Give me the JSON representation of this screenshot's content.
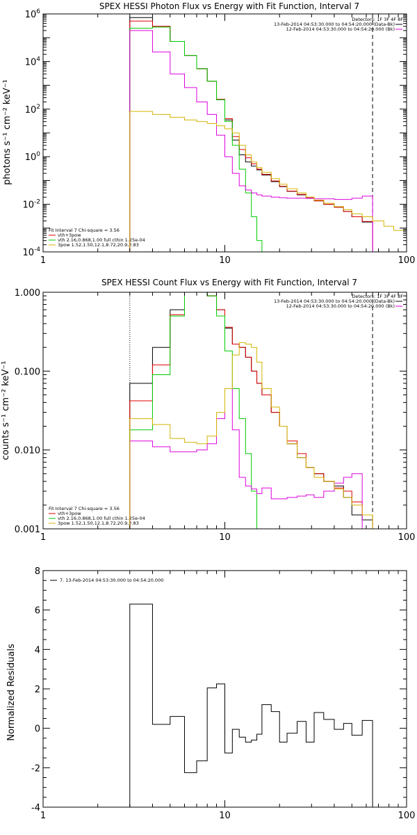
{
  "colors": {
    "black": "#000000",
    "red": "#e00000",
    "green": "#00cc00",
    "magenta": "#dd00dd",
    "yellow": "#d4b400"
  },
  "chart_data": [
    {
      "type": "line",
      "title": "SPEX HESSI Photon Flux vs Energy with Fit Function, Interval 7",
      "ylabel": "photons s⁻¹ cm⁻² keV⁻¹",
      "xlabel": "",
      "xscale": "log",
      "yscale": "log",
      "xlim": [
        1,
        100
      ],
      "ylim": [
        0.0001,
        1000000
      ],
      "x_ticks": [
        {
          "v": 1,
          "label": "1"
        },
        {
          "v": 10,
          "label": "10"
        },
        {
          "v": 100,
          "label": "100"
        }
      ],
      "y_ticks": [
        {
          "v": 0.0001,
          "base": "10",
          "exp": "-4"
        },
        {
          "v": 0.01,
          "base": "10",
          "exp": "-2"
        },
        {
          "v": 1,
          "base": "10",
          "exp": "0"
        },
        {
          "v": 100,
          "base": "10",
          "exp": "2"
        },
        {
          "v": 10000,
          "base": "10",
          "exp": "4"
        },
        {
          "v": 1000000,
          "base": "10",
          "exp": "6"
        }
      ],
      "legend_top": {
        "header": "Detectors: 1F 3F 4F 8F",
        "entries": [
          {
            "text": "13-Feb-2014 04:53:30.000 to 04:54:20.000 (Data-Bk)",
            "color": "#000000"
          },
          {
            "text": "12-Feb-2014 04:53:30.000 to 04:54:20.000 (Bk)",
            "color": "#dd00dd"
          }
        ]
      },
      "legend_bottom": {
        "header": "Fit Interval  7    Chi-square = 3.56",
        "entries": [
          {
            "text": "vth+3pow",
            "color": "#e00000"
          },
          {
            "text": "vth 2.16,0.868,1.00   full cthin 1.25e-04",
            "color": "#00cc00"
          },
          {
            "text": "3pow 1.52,1.50,12.1,8.72,20.9,2.83",
            "color": "#d4b400"
          }
        ]
      },
      "vlines": [
        {
          "x": 3,
          "style": "dotted"
        },
        {
          "x": 65,
          "style": "dashed"
        }
      ],
      "bin_edges": [
        3,
        4,
        5,
        6,
        7,
        8,
        9,
        10,
        11,
        12,
        13,
        14,
        15,
        16,
        18,
        20,
        22,
        25,
        28,
        31,
        35,
        40,
        45,
        50,
        57,
        65,
        75,
        85,
        100
      ],
      "series": [
        {
          "name": "Data-Bk",
          "color": "#000000",
          "start": 0,
          "values": [
            700000,
            300000,
            70000,
            18000,
            5000,
            1500,
            250,
            35,
            5,
            1.2,
            0.6,
            0.4,
            0.28,
            0.17,
            0.09,
            0.055,
            0.035,
            0.025,
            0.018,
            0.014,
            0.01,
            0.0075,
            0.005,
            0.003,
            0.0018
          ]
        },
        {
          "name": "vth+3pow",
          "color": "#e00000",
          "start": 0,
          "values": [
            500000,
            300000,
            70000,
            18000,
            5000,
            1500,
            260,
            40,
            7,
            2,
            0.9,
            0.5,
            0.3,
            0.18,
            0.095,
            0.057,
            0.036,
            0.026,
            0.019,
            0.014,
            0.01,
            0.0075,
            0.005,
            0.003,
            0.0019
          ]
        },
        {
          "name": "vth",
          "color": "#00cc00",
          "start": 0,
          "values": [
            250000,
            280000,
            70000,
            18000,
            5000,
            1500,
            250,
            30,
            3,
            0.3,
            0.03,
            0.003,
            0.0003,
            4e-05
          ]
        },
        {
          "name": "Bk",
          "color": "#dd00dd",
          "start": 0,
          "values": [
            200000,
            25000,
            3000,
            800,
            200,
            60,
            8,
            1,
            0.2,
            0.06,
            0.04,
            0.03,
            0.025,
            0.022,
            0.02,
            0.019,
            0.018,
            0.018,
            0.018,
            0.017,
            0.017,
            0.016,
            0.016,
            0.018,
            0.022
          ]
        },
        {
          "name": "3pow",
          "color": "#d4b400",
          "start": 0,
          "values": [
            80,
            60,
            45,
            35,
            30,
            25,
            20,
            15,
            10,
            3,
            1.2,
            0.6,
            0.35,
            0.22,
            0.12,
            0.07,
            0.045,
            0.03,
            0.02,
            0.015,
            0.011,
            0.008,
            0.006,
            0.004,
            0.003,
            0.002,
            0.0012,
            0.0008
          ]
        }
      ]
    },
    {
      "type": "line",
      "title": "SPEX HESSI Count Flux vs Energy with Fit Function, Interval 7",
      "ylabel": "counts s⁻¹ cm⁻² keV⁻¹",
      "xlabel": "",
      "xscale": "log",
      "yscale": "log",
      "xlim": [
        1,
        100
      ],
      "ylim": [
        0.001,
        1
      ],
      "x_ticks": [
        {
          "v": 1,
          "label": "1"
        },
        {
          "v": 10,
          "label": "10"
        },
        {
          "v": 100,
          "label": "100"
        }
      ],
      "y_ticks": [
        {
          "v": 0.001,
          "label": "0.001"
        },
        {
          "v": 0.01,
          "label": "0.010"
        },
        {
          "v": 0.1,
          "label": "0.100"
        },
        {
          "v": 1,
          "label": "1.000"
        }
      ],
      "legend_top": {
        "header": "Detectors: 1F 3F 4F 8F",
        "entries": [
          {
            "text": "13-Feb-2014 04:53:30.000 to 04:54:20.000 (Data-Bk)",
            "color": "#000000"
          },
          {
            "text": "12-Feb-2014 04:53:30.000 to 04:54:20.000 (Bk)",
            "color": "#dd00dd"
          }
        ]
      },
      "legend_bottom": {
        "header": "Fit Interval  7    Chi-square = 3.56",
        "entries": [
          {
            "text": "vth+3pow",
            "color": "#e00000"
          },
          {
            "text": "vth 2.16,0.868,1.00   full cthin 1.25e-04",
            "color": "#00cc00"
          },
          {
            "text": "3pow 1.52,1.50,12.1,8.72,20.9,2.83",
            "color": "#d4b400"
          }
        ]
      },
      "vlines": [
        {
          "x": 3,
          "style": "dotted"
        },
        {
          "x": 65,
          "style": "dashed"
        }
      ],
      "bin_edges": [
        3,
        4,
        5,
        6,
        7,
        8,
        9,
        10,
        11,
        12,
        13,
        14,
        15,
        16,
        18,
        20,
        22,
        25,
        28,
        31,
        35,
        40,
        45,
        50,
        57,
        65,
        75,
        85,
        100
      ],
      "series": [
        {
          "name": "Data-Bk",
          "color": "#000000",
          "start": 0,
          "values": [
            0.07,
            0.2,
            0.6,
            1.5,
            1.3,
            0.9,
            0.6,
            0.35,
            0.22,
            0.2,
            0.15,
            0.1,
            0.07,
            0.05,
            0.03,
            0.02,
            0.012,
            0.008,
            0.006,
            0.005,
            0.004,
            0.0035,
            0.0025,
            0.0015,
            0.0013
          ]
        },
        {
          "name": "vth+3pow",
          "color": "#e00000",
          "start": 0,
          "values": [
            0.042,
            0.12,
            0.52,
            1.5,
            1.3,
            0.9,
            0.6,
            0.36,
            0.22,
            0.2,
            0.15,
            0.1,
            0.07,
            0.05,
            0.03,
            0.02,
            0.013,
            0.009,
            0.006,
            0.005,
            0.004,
            0.0033,
            0.003,
            0.0022,
            0.0015
          ]
        },
        {
          "name": "vth",
          "color": "#00cc00",
          "start": 0,
          "values": [
            0.018,
            0.09,
            0.5,
            1.5,
            1.3,
            0.9,
            0.5,
            0.18,
            0.06,
            0.025,
            0.009,
            0.003,
            0.0009,
            0.0003
          ]
        },
        {
          "name": "Bk",
          "color": "#dd00dd",
          "start": 0,
          "values": [
            0.013,
            0.011,
            0.0095,
            0.0095,
            0.01,
            0.012,
            0.025,
            0.06,
            0.018,
            0.0045,
            0.0035,
            0.0032,
            0.0028,
            0.0033,
            0.0024,
            0.0024,
            0.0025,
            0.0026,
            0.0027,
            0.0025,
            0.003,
            0.0038,
            0.0045,
            0.005
          ]
        },
        {
          "name": "3pow",
          "color": "#d4b400",
          "start": 0,
          "values": [
            0.025,
            0.021,
            0.014,
            0.0125,
            0.012,
            0.015,
            0.03,
            0.06,
            0.16,
            0.23,
            0.22,
            0.2,
            0.13,
            0.06,
            0.035,
            0.02,
            0.012,
            0.008,
            0.006,
            0.0045,
            0.004,
            0.0032,
            0.0025,
            0.002,
            0.0015
          ]
        }
      ]
    },
    {
      "type": "line",
      "title": "",
      "ylabel": "Normalized Residuals",
      "xlabel": "",
      "xscale": "log",
      "yscale": "linear",
      "xlim": [
        1,
        100
      ],
      "ylim": [
        -4,
        8
      ],
      "x_ticks": [
        {
          "v": 1,
          "label": "1"
        },
        {
          "v": 10,
          "label": "10"
        },
        {
          "v": 100,
          "label": "100"
        }
      ],
      "y_ticks": [
        {
          "v": -4,
          "label": "-4"
        },
        {
          "v": -2,
          "label": "-2"
        },
        {
          "v": 0,
          "label": "0"
        },
        {
          "v": 2,
          "label": "2"
        },
        {
          "v": 4,
          "label": "4"
        },
        {
          "v": 6,
          "label": "6"
        },
        {
          "v": 8,
          "label": "8"
        }
      ],
      "legend_top": {
        "header": "",
        "entries": [
          {
            "text": "7. 13-Feb-2014 04:53:30.000 to 04:54:20.000",
            "color": "#000000"
          }
        ]
      },
      "bin_edges": [
        3,
        4,
        5,
        6,
        7,
        8,
        9,
        10,
        11,
        12,
        13,
        14,
        15,
        16,
        18,
        20,
        22,
        25,
        28,
        31,
        35,
        40,
        45,
        50,
        57,
        65
      ],
      "series": [
        {
          "name": "7. 13-Feb-2014 04:53:30.000 to 04:54:20.000",
          "color": "#000000",
          "start": 0,
          "values": [
            6.3,
            0.2,
            0.6,
            -2.25,
            -1.65,
            2.05,
            2.25,
            -1.25,
            -0.05,
            -0.45,
            -0.7,
            -0.6,
            -0.3,
            1.2,
            0.85,
            -0.7,
            -0.25,
            0.35,
            -0.7,
            0.8,
            0.45,
            -0.05,
            0.25,
            -0.35,
            0.4
          ]
        }
      ]
    }
  ]
}
